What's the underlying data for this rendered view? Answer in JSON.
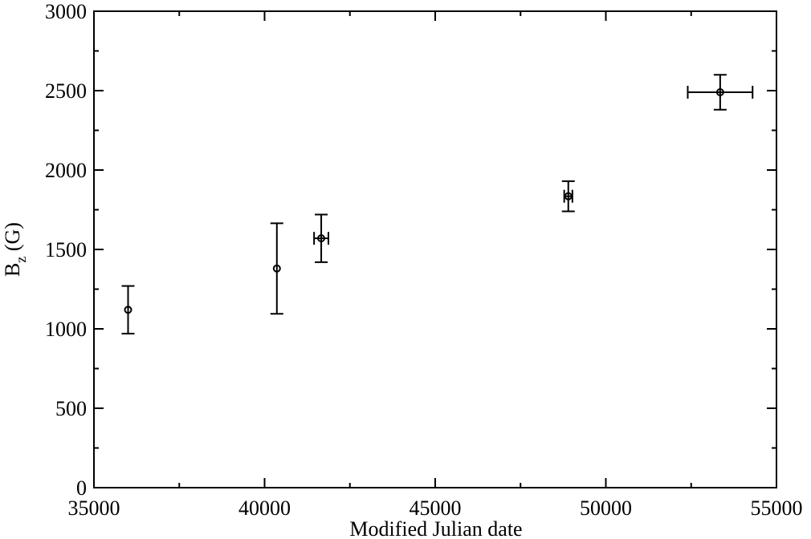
{
  "chart_data": {
    "type": "scatter",
    "xlabel": "Modified Julian date",
    "ylabel": {
      "base": "B",
      "sub": "z",
      "rest": " (G)"
    },
    "series": [
      {
        "color": "#000000",
        "x": [
          36000,
          40360,
          41660,
          48900,
          53350
        ],
        "y": [
          1120,
          1380,
          1570,
          1835,
          2490
        ],
        "yerr": [
          150,
          285,
          150,
          95,
          110
        ],
        "xerr": [
          null,
          null,
          210,
          120,
          950
        ]
      }
    ],
    "xlim": [
      35000,
      55000
    ],
    "xticks": [
      35000,
      40000,
      45000,
      50000,
      55000
    ],
    "xminorticks": [
      37500,
      42500,
      47500,
      52500
    ],
    "ylim": [
      0,
      3000
    ],
    "yticks": [
      0,
      500,
      1000,
      1500,
      2000,
      2500,
      3000
    ],
    "yminorticks": [
      250,
      750,
      1250,
      1750,
      2250,
      2750
    ],
    "grid": false
  }
}
